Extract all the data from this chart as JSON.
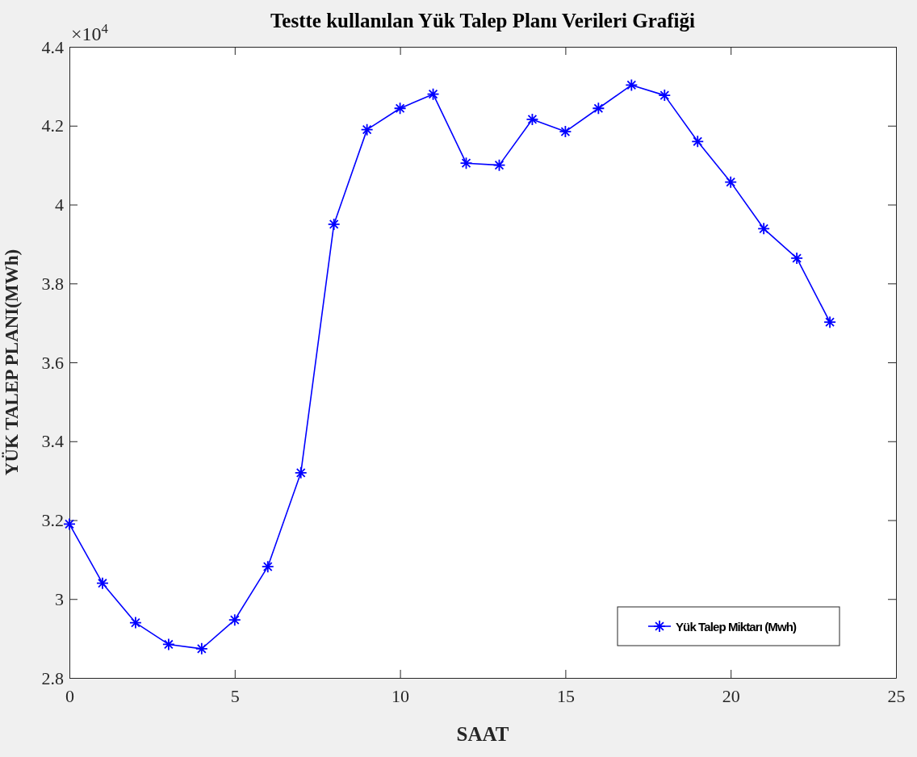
{
  "chart_data": {
    "type": "line",
    "title": "Testte kullanılan Yük Talep Planı Verileri Grafiği",
    "xlabel": "SAAT",
    "ylabel": "YÜK TALEP PLANI(MWh)",
    "annotations": [
      "×10$^{4}$"
    ],
    "x": [
      0,
      1,
      2,
      3,
      4,
      5,
      6,
      7,
      8,
      9,
      10,
      11,
      12,
      13,
      14,
      15,
      16,
      17,
      18,
      19,
      20,
      21,
      22,
      23
    ],
    "series": [
      {
        "name": "Yük Talep Miktarı (Mwh)",
        "color": "#0000ff",
        "values": [
          3.19,
          3.04,
          2.94,
          2.885,
          2.874,
          2.947,
          3.082,
          3.32,
          3.95,
          4.19,
          4.244,
          4.28,
          4.105,
          4.1,
          4.216,
          4.185,
          4.244,
          4.303,
          4.277,
          4.16,
          4.057,
          3.939,
          3.864,
          3.702
        ]
      }
    ],
    "xlim": [
      0,
      25
    ],
    "xticks": [
      0,
      5,
      10,
      15,
      20,
      25
    ],
    "ylim": [
      2.8,
      4.4
    ],
    "yticks": [
      2.8,
      3,
      3.2,
      3.4,
      3.6,
      3.8,
      4,
      4.2,
      4.4
    ],
    "legend": "bottom right",
    "marker": "cross",
    "line_style": "solid",
    "grid": false
  }
}
